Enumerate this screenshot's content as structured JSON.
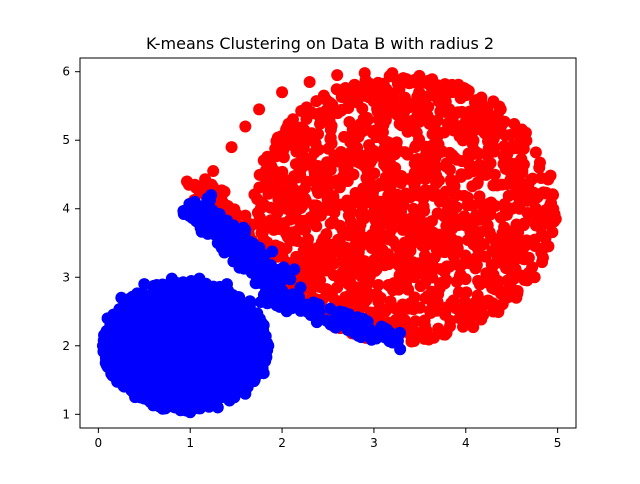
{
  "chart_data": {
    "type": "scatter",
    "title": "K-means Clustering on Data B with radius 2",
    "xlabel": "",
    "ylabel": "",
    "xlim": [
      -0.2,
      5.2
    ],
    "ylim": [
      0.8,
      6.2
    ],
    "x_ticks": [
      0,
      1,
      2,
      3,
      4,
      5
    ],
    "y_ticks": [
      1,
      2,
      3,
      4,
      5,
      6
    ],
    "grid": false,
    "legend": "none",
    "series": [
      {
        "color": "#ff0000",
        "regions": [
          {
            "shape": "ellipse",
            "center": [
              3.33,
              4.0
            ],
            "radius_x": 1.65,
            "radius_y": 1.95
          },
          {
            "shape": "band",
            "from": [
              1.1,
              4.35
            ],
            "to": [
              1.8,
              3.2
            ]
          }
        ],
        "points": [
          [
            1.05,
            4.35
          ],
          [
            1.25,
            4.55
          ],
          [
            1.45,
            4.9
          ],
          [
            1.6,
            5.2
          ],
          [
            1.75,
            5.45
          ],
          [
            2.0,
            5.7
          ],
          [
            2.3,
            5.85
          ],
          [
            2.6,
            5.95
          ],
          [
            2.9,
            5.98
          ],
          [
            3.2,
            5.98
          ],
          [
            3.5,
            5.9
          ],
          [
            3.8,
            5.75
          ],
          [
            4.1,
            5.55
          ],
          [
            4.35,
            5.3
          ],
          [
            4.6,
            5.0
          ],
          [
            4.8,
            4.6
          ],
          [
            4.95,
            4.2
          ],
          [
            4.98,
            3.85
          ],
          [
            4.9,
            3.45
          ],
          [
            4.75,
            3.0
          ],
          [
            4.55,
            2.7
          ],
          [
            4.3,
            2.5
          ],
          [
            4.0,
            2.35
          ],
          [
            3.7,
            2.25
          ],
          [
            3.4,
            2.2
          ],
          [
            3.1,
            2.3
          ],
          [
            2.85,
            2.55
          ],
          [
            2.6,
            2.85
          ],
          [
            2.35,
            3.0
          ],
          [
            2.15,
            3.15
          ],
          [
            1.95,
            3.3
          ],
          [
            1.8,
            3.55
          ],
          [
            1.6,
            3.9
          ],
          [
            1.35,
            4.1
          ],
          [
            1.2,
            4.25
          ]
        ]
      },
      {
        "color": "#0000ff",
        "regions": [
          {
            "shape": "ellipse",
            "center": [
              0.95,
              2.0
            ],
            "radius_x": 0.9,
            "radius_y": 0.95
          },
          {
            "shape": "band",
            "from": [
              1.05,
              4.1
            ],
            "to": [
              2.0,
              2.9
            ]
          },
          {
            "shape": "band",
            "from": [
              1.8,
              2.8
            ],
            "to": [
              3.25,
              2.05
            ]
          }
        ],
        "points": [
          [
            0.05,
            2.0
          ],
          [
            0.1,
            2.4
          ],
          [
            0.25,
            2.7
          ],
          [
            0.5,
            2.9
          ],
          [
            0.8,
            2.98
          ],
          [
            1.1,
            2.98
          ],
          [
            1.4,
            2.9
          ],
          [
            1.65,
            2.65
          ],
          [
            1.8,
            2.3
          ],
          [
            1.85,
            2.0
          ],
          [
            1.8,
            1.6
          ],
          [
            1.6,
            1.3
          ],
          [
            1.3,
            1.1
          ],
          [
            1.0,
            1.03
          ],
          [
            0.7,
            1.08
          ],
          [
            0.4,
            1.25
          ],
          [
            0.2,
            1.55
          ],
          [
            0.08,
            1.75
          ],
          [
            1.05,
            4.1
          ],
          [
            1.15,
            3.8
          ],
          [
            1.3,
            3.5
          ],
          [
            1.5,
            3.3
          ],
          [
            1.7,
            3.15
          ],
          [
            2.0,
            3.0
          ],
          [
            2.2,
            2.85
          ],
          [
            2.4,
            2.6
          ],
          [
            2.6,
            2.4
          ],
          [
            2.8,
            2.25
          ],
          [
            3.0,
            2.15
          ],
          [
            3.2,
            2.08
          ]
        ]
      }
    ]
  }
}
